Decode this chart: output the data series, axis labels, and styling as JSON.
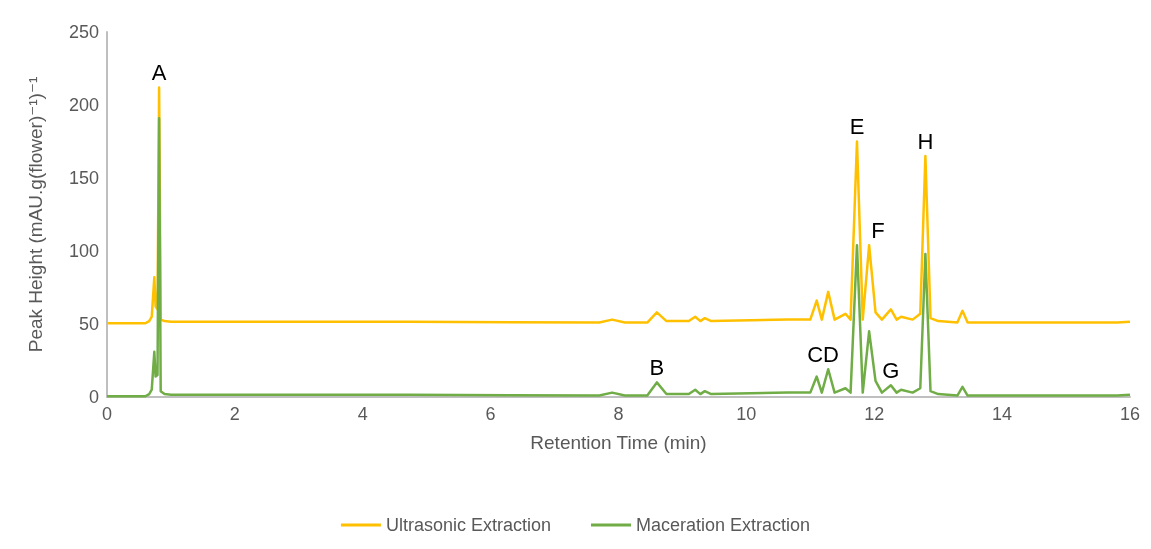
{
  "chart_data": {
    "type": "line",
    "xlabel": "Retention Time (min)",
    "ylabel": "Peak Height (mAU.g(flower)⁻¹)⁻¹",
    "x": [
      0,
      0.6,
      0.66,
      0.7,
      0.74,
      0.76,
      0.79,
      0.815,
      0.84,
      0.9,
      1.0,
      2.6,
      4.7,
      7.7,
      7.9,
      8.1,
      8.45,
      8.6,
      8.75,
      9.1,
      9.2,
      9.28,
      9.35,
      9.45,
      10.65,
      11.0,
      11.1,
      11.18,
      11.28,
      11.38,
      11.55,
      11.63,
      11.73,
      11.82,
      11.92,
      12.02,
      12.12,
      12.26,
      12.35,
      12.42,
      12.6,
      12.72,
      12.8,
      12.88,
      13.0,
      13.3,
      13.38,
      13.46,
      15.8,
      16
    ],
    "series": [
      {
        "name": "Ultrasonic Extraction",
        "color": "#ffc000",
        "values": [
          50.5,
          50.5,
          52,
          55,
          82,
          62,
          60,
          212,
          53,
          52,
          51.5,
          51.5,
          51.5,
          51,
          53,
          51,
          51,
          58,
          52,
          52,
          55,
          52,
          54,
          52,
          53,
          53,
          66,
          53,
          72,
          53,
          57,
          53,
          175,
          53,
          104,
          58,
          53,
          60,
          53,
          55,
          53,
          57,
          165,
          54,
          52,
          51,
          59,
          51,
          51,
          51.5
        ]
      },
      {
        "name": "Maceration Extraction",
        "color": "#70ad47",
        "values": [
          0.5,
          0.5,
          2,
          5,
          31,
          14,
          15,
          191,
          4,
          2,
          1.5,
          1.5,
          1.5,
          1,
          3,
          1,
          1,
          10,
          2,
          2,
          5,
          2,
          4,
          2,
          3,
          3,
          14,
          3,
          19,
          3,
          6,
          3,
          104,
          3,
          45,
          11,
          3,
          8,
          3,
          5,
          3,
          6,
          98,
          4,
          2,
          1,
          7,
          1,
          1,
          1.5
        ]
      }
    ],
    "xlim": [
      0,
      16
    ],
    "xticks": [
      0,
      2,
      4,
      6,
      8,
      10,
      12,
      14,
      16
    ],
    "ylim": [
      0,
      250
    ],
    "yticks": [
      0,
      50,
      100,
      150,
      200,
      250
    ],
    "annotations": [
      {
        "text": "A",
        "x": 0.815,
        "y": 212
      },
      {
        "text": "B",
        "x": 8.6,
        "y": 10
      },
      {
        "text": "CD",
        "x": 11.2,
        "y": 19
      },
      {
        "text": "E",
        "x": 11.73,
        "y": 175
      },
      {
        "text": "F",
        "x": 11.92,
        "y": 104
      },
      {
        "text": "G",
        "x": 12.26,
        "y": 8
      },
      {
        "text": "H",
        "x": 12.8,
        "y": 165
      }
    ],
    "grid": false,
    "legend": "bottom",
    "marker": "none",
    "line_style": "solid"
  }
}
